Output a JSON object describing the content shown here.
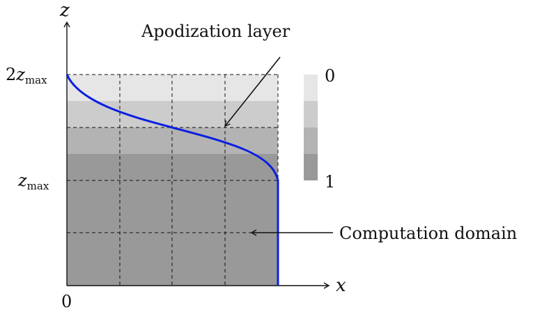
{
  "labels": {
    "z_axis": "z",
    "x_axis": "x",
    "origin": "0",
    "z_top_coef": "2",
    "z_var": "z",
    "z_sub": "max",
    "apodization_layer": "Apodization layer",
    "computation_domain": "Computation domain"
  },
  "colorbar": {
    "top_label": "0",
    "bottom_label": "1",
    "shades": [
      "#e6e6e6",
      "#cccccc",
      "#b3b3b3",
      "#999999"
    ]
  },
  "colors": {
    "domain_fill": "#999999",
    "profile_curve": "#0b1fe0",
    "grid": "#111111"
  }
}
